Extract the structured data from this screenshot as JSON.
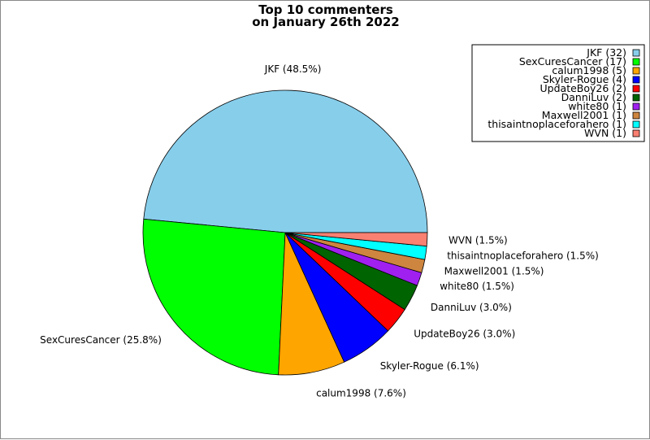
{
  "chart_data": {
    "type": "pie",
    "title": [
      "Top 10 commenters",
      "on January 26th 2022"
    ],
    "legend_position": "top-right",
    "slices": [
      {
        "name": "JKF",
        "value": 32,
        "percent": "48.5%",
        "color": "#87ceeb"
      },
      {
        "name": "SexCuresCancer",
        "value": 17,
        "percent": "25.8%",
        "color": "#00ff00"
      },
      {
        "name": "calum1998",
        "value": 5,
        "percent": "7.6%",
        "color": "#ffa500"
      },
      {
        "name": "Skyler-Rogue",
        "value": 4,
        "percent": "6.1%",
        "color": "#0000ff"
      },
      {
        "name": "UpdateBoy26",
        "value": 2,
        "percent": "3.0%",
        "color": "#ff0000"
      },
      {
        "name": "DanniLuv",
        "value": 2,
        "percent": "3.0%",
        "color": "#006400"
      },
      {
        "name": "white80",
        "value": 1,
        "percent": "1.5%",
        "color": "#a020f0"
      },
      {
        "name": "Maxwell2001",
        "value": 1,
        "percent": "1.5%",
        "color": "#cd853f"
      },
      {
        "name": "thisaintnoplaceforahero",
        "value": 1,
        "percent": "1.5%",
        "color": "#00ffff"
      },
      {
        "name": "WVN",
        "value": 1,
        "percent": "1.5%",
        "color": "#fa8072"
      }
    ],
    "labels": [
      "JKF (48.5%)",
      "SexCuresCancer (25.8%)",
      "calum1998 (7.6%)",
      "Skyler-Rogue (6.1%)",
      "UpdateBoy26 (3.0%)",
      "DanniLuv (3.0%)",
      "white80 (1.5%)",
      "Maxwell2001 (1.5%)",
      "thisaintnoplaceforahero (1.5%)",
      "WVN (1.5%)"
    ],
    "legend_entries": [
      "JKF (32)",
      "SexCuresCancer (17)",
      "calum1998 (5)",
      "Skyler-Rogue (4)",
      "UpdateBoy26 (2)",
      "DanniLuv (2)",
      "white80 (1)",
      "Maxwell2001 (1)",
      "thisaintnoplaceforahero (1)",
      "WVN (1)"
    ]
  }
}
